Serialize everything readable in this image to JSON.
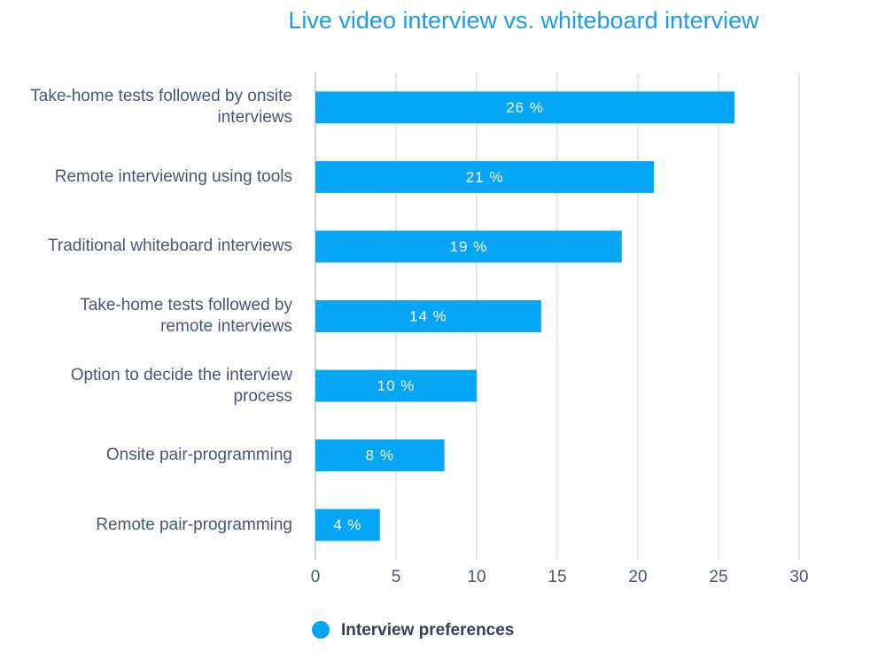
{
  "chart_data": {
    "type": "bar",
    "orientation": "horizontal",
    "title": "Live video interview vs. whiteboard interview",
    "categories": [
      "Take-home tests followed by onsite interviews",
      "Remote interviewing using tools",
      "Traditional whiteboard interviews",
      "Take-home tests followed by remote interviews",
      "Option to decide the interview process",
      "Onsite pair-programming",
      "Remote pair-programming"
    ],
    "series": [
      {
        "name": "Interview preferences",
        "color": "#05a6f6",
        "values": [
          26,
          21,
          19,
          14,
          10,
          8,
          4
        ],
        "value_labels": [
          "26 %",
          "21 %",
          "19 %",
          "14 %",
          "10 %",
          "8 %",
          "4 %"
        ]
      }
    ],
    "xlim": [
      0,
      30
    ],
    "xticks": [
      0,
      5,
      10,
      15,
      20,
      25,
      30
    ],
    "grid": true
  }
}
